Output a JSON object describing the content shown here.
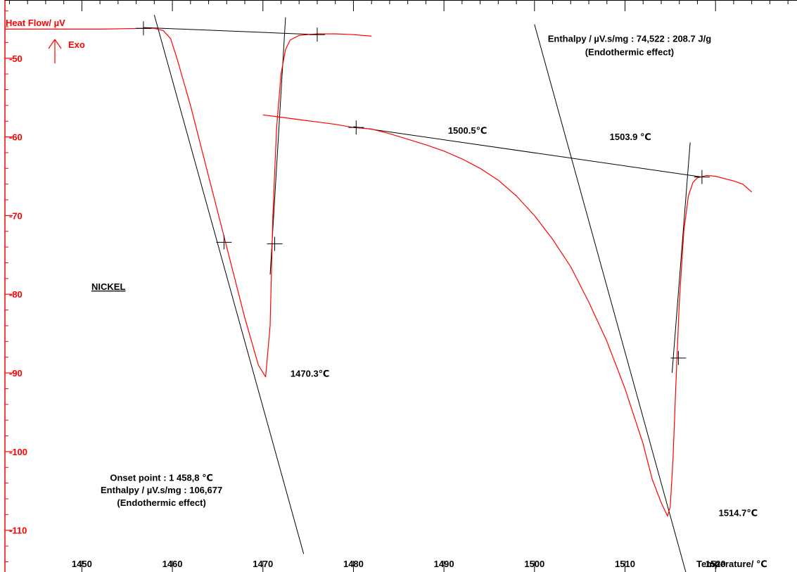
{
  "chart_data": {
    "type": "line",
    "ylabel": "Heat Flow/ µV",
    "exo_label": "Exo",
    "xlabel": "Temperature/ ℃",
    "xlim": [
      1441.5,
      1529
    ],
    "ylim": [
      -115.3,
      -42.6
    ],
    "x_ticks": [
      1450,
      1460,
      1470,
      1480,
      1490,
      1500,
      1510,
      1520
    ],
    "y_ticks": [
      -50,
      -60,
      -70,
      -80,
      -90,
      -100,
      -110
    ],
    "sample_label": "NICKEL",
    "colors": {
      "curve": "#ff0000",
      "construction": "#000000",
      "axis": "#ff0000"
    },
    "series": [
      {
        "role": "heating-scan",
        "x": [
          1441.5,
          1452,
          1456.8,
          1458,
          1459,
          1459.8,
          1460.5,
          1462,
          1464,
          1466,
          1468,
          1469.5,
          1470.3,
          1470.8,
          1471.1,
          1471.5,
          1472,
          1472.5,
          1473,
          1474,
          1476,
          1478,
          1480,
          1482
        ],
        "y": [
          -46.3,
          -46.3,
          -46.2,
          -46.2,
          -46.5,
          -47.5,
          -50,
          -56,
          -65,
          -74,
          -83,
          -89,
          -90.5,
          -84,
          -70,
          -59,
          -52,
          -48.9,
          -47.7,
          -47.1,
          -46.9,
          -46.9,
          -47,
          -47.2
        ]
      },
      {
        "role": "cooling-scan",
        "x": [
          1470,
          1472,
          1474,
          1476,
          1478,
          1480,
          1482,
          1484,
          1486,
          1488,
          1490,
          1492,
          1494,
          1496,
          1498,
          1500,
          1502,
          1504,
          1506,
          1508,
          1510,
          1512,
          1513,
          1514,
          1514.7,
          1515,
          1515.3,
          1515.6,
          1516,
          1516.5,
          1517,
          1517.5,
          1518,
          1519,
          1520,
          1521,
          1522,
          1523,
          1524
        ],
        "y": [
          -57.2,
          -57.5,
          -57.8,
          -58.1,
          -58.4,
          -58.8,
          -59,
          -59.6,
          -60.3,
          -61,
          -61.8,
          -62.8,
          -64,
          -65.5,
          -67.5,
          -70,
          -73,
          -76.5,
          -81,
          -86,
          -92,
          -99,
          -103.5,
          -106.5,
          -108.2,
          -107,
          -101,
          -92,
          -81,
          -72,
          -67.5,
          -65.8,
          -65.2,
          -64.9,
          -65,
          -65.3,
          -65.6,
          -66,
          -67
        ]
      }
    ],
    "tangent_lines": [
      {
        "x": [
          1458,
          1474.5
        ],
        "y": [
          -44.5,
          -113
        ]
      },
      {
        "x": [
          1456.8,
          1476
        ],
        "y": [
          -46.1,
          -47
        ]
      },
      {
        "x": [
          1470.8,
          1472.5
        ],
        "y": [
          -77.5,
          -44.8
        ]
      },
      {
        "x": [
          1480,
          1518.5
        ],
        "y": [
          -58.7,
          -65.1
        ]
      },
      {
        "x": [
          1500,
          1517
        ],
        "y": [
          -45.7,
          -116.5
        ]
      },
      {
        "x": [
          1515.2,
          1517.2
        ],
        "y": [
          -90,
          -60.7
        ]
      }
    ],
    "crosshair_markers": [
      {
        "x": 1456.8,
        "y": -46.2
      },
      {
        "x": 1476,
        "y": -47
      },
      {
        "x": 1465.7,
        "y": -73.4
      },
      {
        "x": 1471.3,
        "y": -73.6
      },
      {
        "x": 1480.3,
        "y": -58.8
      },
      {
        "x": 1518.5,
        "y": -65.1
      },
      {
        "x": 1515.9,
        "y": -88.1
      }
    ],
    "annotations": [
      {
        "text": "1470.3℃",
        "x": 1475.2,
        "y": -90.5
      },
      {
        "text": "1500.5℃",
        "x": 1492.6,
        "y": -59.6
      },
      {
        "text": "1503.9 ℃",
        "x": 1510.6,
        "y": -60.4
      },
      {
        "text": "1514.7℃",
        "x": 1522.5,
        "y": -108.2
      },
      {
        "text": "Enthalpy / µV.s/mg : 74,522 : 208.7 J/g",
        "x": 1510.5,
        "y": -47.9
      },
      {
        "text": "(Endothermic effect)",
        "x": 1510.5,
        "y": -49.6
      },
      {
        "text": "Onset point : 1 458,8  ℃",
        "x": 1458.8,
        "y": -103.7
      },
      {
        "text": "Enthalpy / µV.s/mg : 106,677",
        "x": 1458.8,
        "y": -105.3
      },
      {
        "text": "(Endothermic effect)",
        "x": 1458.8,
        "y": -106.9
      }
    ]
  }
}
